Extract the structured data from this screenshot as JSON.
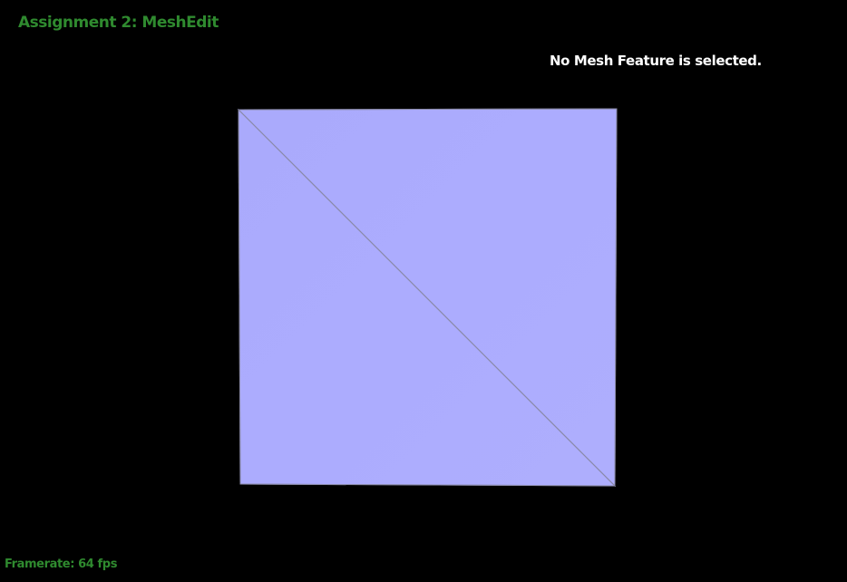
{
  "app": {
    "title": "Assignment 2: MeshEdit"
  },
  "status": {
    "selection": "No Mesh Feature is selected.",
    "framerate": "Framerate: 64 fps"
  },
  "colors": {
    "background": "#000000",
    "title_text": "#2f8a2f",
    "status_text": "#ffffff",
    "face_fill": "#aeaefd",
    "edge_stroke": "#8a8aa8"
  }
}
